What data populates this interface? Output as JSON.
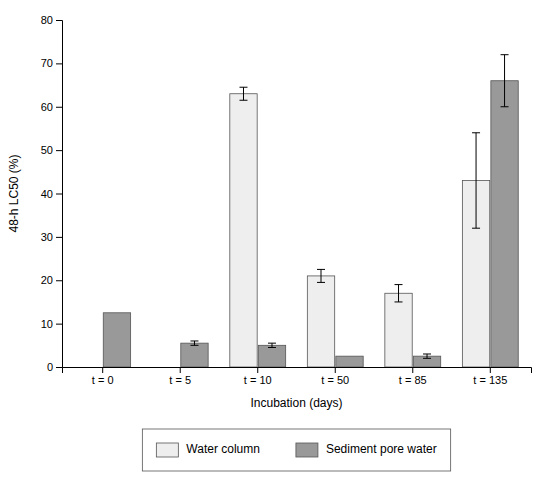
{
  "chart_data": {
    "type": "bar",
    "categories": [
      "t = 0",
      "t = 5",
      "t = 10",
      "t = 50",
      "t = 85",
      "t = 135"
    ],
    "series": [
      {
        "name": "Water column",
        "color": "#eeeeee",
        "values": [
          0,
          0,
          63,
          21,
          17,
          43
        ],
        "errors": [
          null,
          null,
          1.5,
          1.5,
          2,
          11
        ]
      },
      {
        "name": "Sediment pore water",
        "color": "#999999",
        "values": [
          12.5,
          5.5,
          5,
          2.5,
          2.5,
          66
        ],
        "errors": [
          null,
          0.5,
          0.5,
          null,
          0.5,
          6
        ]
      }
    ],
    "xlabel": "Incubation (days)",
    "ylabel": "48-h LC50 (%)",
    "ylim": [
      0,
      80
    ],
    "yticks": [
      0,
      10,
      20,
      30,
      40,
      50,
      60,
      70,
      80
    ],
    "legend": "bottom"
  }
}
